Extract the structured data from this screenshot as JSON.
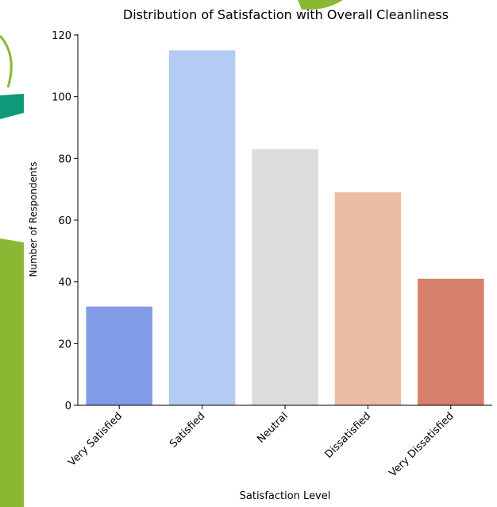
{
  "chart_data": {
    "type": "bar",
    "title": "Distribution of Satisfaction with Overall Cleanliness",
    "x_label": "Satisfaction Level",
    "y_label": "Number of Respondents",
    "categories": [
      "Very Satisfied",
      "Satisfied",
      "Neutral",
      "Dissatisfied",
      "Very Dissatisfied"
    ],
    "values": [
      32,
      115,
      83,
      69,
      41
    ],
    "colors": [
      "#819be6",
      "#b4cbf3",
      "#dcdcdc",
      "#edbca6",
      "#d67f6b"
    ],
    "ylim": [
      0,
      120
    ],
    "yticks": [
      0,
      20,
      40,
      60,
      80,
      100,
      120
    ],
    "grid": false
  }
}
